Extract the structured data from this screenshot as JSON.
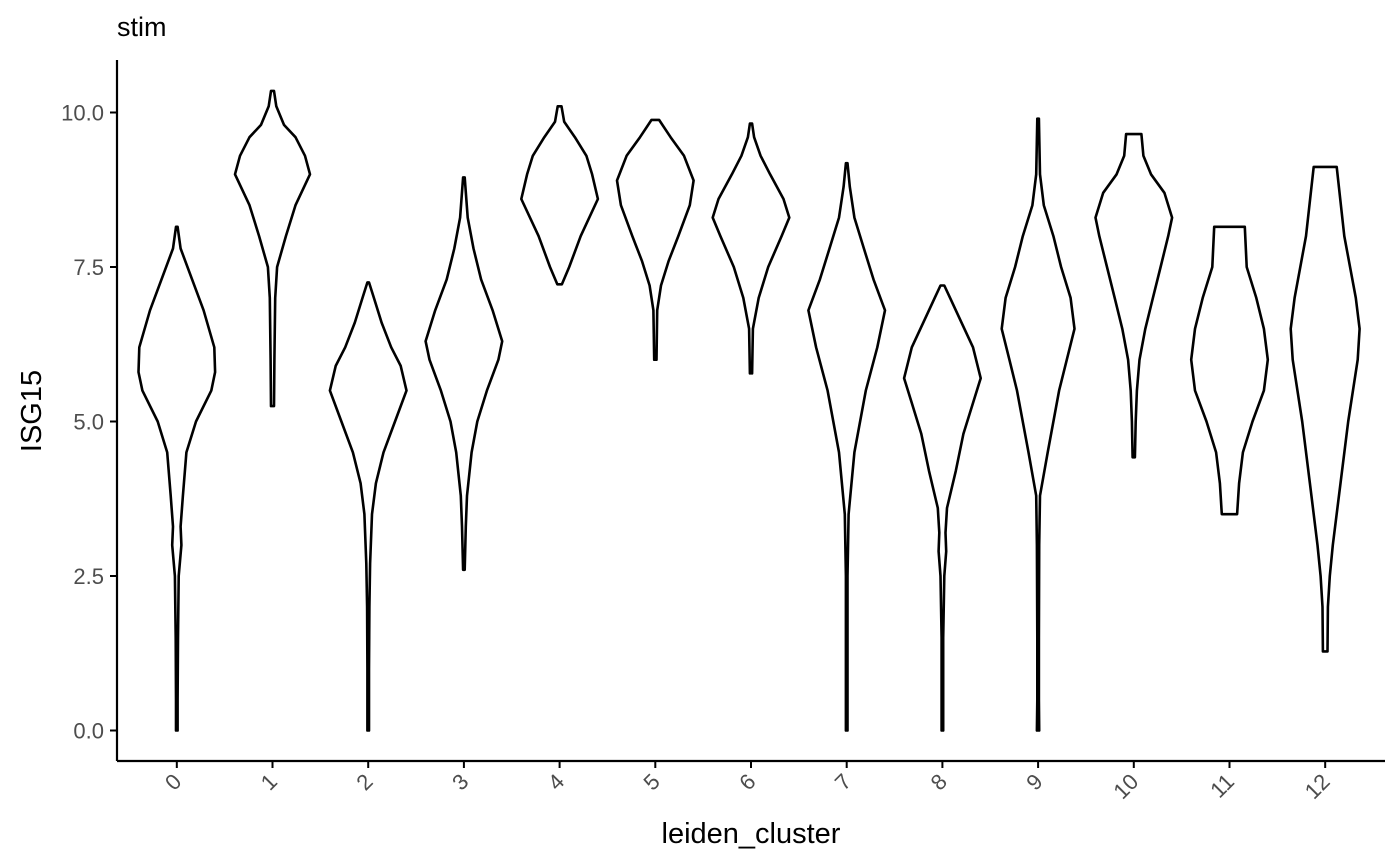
{
  "chart_data": {
    "type": "violin",
    "title": "stim",
    "xlabel": "leiden_cluster",
    "ylabel": "ISG15",
    "ylim": [
      -0.5,
      10.85
    ],
    "yticks": [
      "0.0",
      "2.5",
      "5.0",
      "7.5",
      "10.0"
    ],
    "ytick_values": [
      0,
      2.5,
      5,
      7.5,
      10
    ],
    "grid": false,
    "legend": "none",
    "series": [
      {
        "category": "0",
        "profile": [
          [
            0,
            0.02
          ],
          [
            0.5,
            0.02
          ],
          [
            1.5,
            0.03
          ],
          [
            2.5,
            0.05
          ],
          [
            3.0,
            0.12
          ],
          [
            3.3,
            0.1
          ],
          [
            3.8,
            0.16
          ],
          [
            4.5,
            0.25
          ],
          [
            5.0,
            0.5
          ],
          [
            5.5,
            0.9
          ],
          [
            5.8,
            1.0
          ],
          [
            6.2,
            0.98
          ],
          [
            6.8,
            0.7
          ],
          [
            7.3,
            0.4
          ],
          [
            7.8,
            0.1
          ],
          [
            8.15,
            0.02
          ]
        ]
      },
      {
        "category": "1",
        "profile": [
          [
            5.25,
            0.04
          ],
          [
            6.0,
            0.05
          ],
          [
            7.0,
            0.07
          ],
          [
            7.5,
            0.12
          ],
          [
            8.0,
            0.35
          ],
          [
            8.5,
            0.6
          ],
          [
            9.0,
            0.98
          ],
          [
            9.3,
            0.85
          ],
          [
            9.6,
            0.6
          ],
          [
            9.8,
            0.3
          ],
          [
            10.1,
            0.1
          ],
          [
            10.35,
            0.04
          ]
        ]
      },
      {
        "category": "2",
        "profile": [
          [
            0,
            0.02
          ],
          [
            1.0,
            0.02
          ],
          [
            2.0,
            0.03
          ],
          [
            2.7,
            0.05
          ],
          [
            3.5,
            0.1
          ],
          [
            4.0,
            0.2
          ],
          [
            4.5,
            0.4
          ],
          [
            5.0,
            0.7
          ],
          [
            5.5,
            1.0
          ],
          [
            5.9,
            0.85
          ],
          [
            6.2,
            0.6
          ],
          [
            6.6,
            0.35
          ],
          [
            7.0,
            0.15
          ],
          [
            7.25,
            0.02
          ]
        ]
      },
      {
        "category": "3",
        "profile": [
          [
            2.6,
            0.02
          ],
          [
            3.3,
            0.05
          ],
          [
            3.8,
            0.08
          ],
          [
            4.5,
            0.2
          ],
          [
            5.0,
            0.35
          ],
          [
            5.5,
            0.6
          ],
          [
            6.0,
            0.9
          ],
          [
            6.3,
            1.0
          ],
          [
            6.8,
            0.75
          ],
          [
            7.3,
            0.45
          ],
          [
            7.8,
            0.25
          ],
          [
            8.3,
            0.1
          ],
          [
            8.95,
            0.02
          ]
        ]
      },
      {
        "category": "4",
        "profile": [
          [
            7.22,
            0.06
          ],
          [
            7.5,
            0.25
          ],
          [
            8.0,
            0.55
          ],
          [
            8.6,
            1.0
          ],
          [
            9.0,
            0.85
          ],
          [
            9.3,
            0.7
          ],
          [
            9.6,
            0.4
          ],
          [
            9.85,
            0.12
          ],
          [
            10.1,
            0.05
          ]
        ]
      },
      {
        "category": "5",
        "profile": [
          [
            6.0,
            0.03
          ],
          [
            6.8,
            0.05
          ],
          [
            7.2,
            0.15
          ],
          [
            7.6,
            0.35
          ],
          [
            8.0,
            0.6
          ],
          [
            8.5,
            0.9
          ],
          [
            8.9,
            1.0
          ],
          [
            9.3,
            0.75
          ],
          [
            9.6,
            0.4
          ],
          [
            9.88,
            0.1
          ]
        ]
      },
      {
        "category": "6",
        "profile": [
          [
            5.78,
            0.03
          ],
          [
            6.5,
            0.05
          ],
          [
            7.0,
            0.2
          ],
          [
            7.5,
            0.45
          ],
          [
            8.0,
            0.8
          ],
          [
            8.3,
            1.0
          ],
          [
            8.6,
            0.85
          ],
          [
            9.0,
            0.5
          ],
          [
            9.3,
            0.25
          ],
          [
            9.6,
            0.08
          ],
          [
            9.82,
            0.03
          ]
        ]
      },
      {
        "category": "7",
        "profile": [
          [
            0,
            0.02
          ],
          [
            1.0,
            0.02
          ],
          [
            2.5,
            0.02
          ],
          [
            3.5,
            0.05
          ],
          [
            4.5,
            0.2
          ],
          [
            5.5,
            0.5
          ],
          [
            6.2,
            0.8
          ],
          [
            6.8,
            1.0
          ],
          [
            7.3,
            0.7
          ],
          [
            7.8,
            0.45
          ],
          [
            8.3,
            0.2
          ],
          [
            8.8,
            0.08
          ],
          [
            9.18,
            0.02
          ]
        ]
      },
      {
        "category": "8",
        "profile": [
          [
            0,
            0.02
          ],
          [
            1.5,
            0.02
          ],
          [
            2.5,
            0.05
          ],
          [
            2.9,
            0.1
          ],
          [
            3.2,
            0.08
          ],
          [
            3.6,
            0.12
          ],
          [
            4.2,
            0.35
          ],
          [
            4.8,
            0.55
          ],
          [
            5.3,
            0.8
          ],
          [
            5.7,
            1.0
          ],
          [
            6.2,
            0.8
          ],
          [
            6.6,
            0.5
          ],
          [
            7.0,
            0.2
          ],
          [
            7.2,
            0.05
          ]
        ]
      },
      {
        "category": "9",
        "profile": [
          [
            0,
            0.03
          ],
          [
            0.5,
            0.02
          ],
          [
            1.5,
            0.02
          ],
          [
            3.0,
            0.03
          ],
          [
            3.8,
            0.05
          ],
          [
            4.5,
            0.25
          ],
          [
            5.5,
            0.55
          ],
          [
            6.0,
            0.75
          ],
          [
            6.5,
            0.95
          ],
          [
            7.0,
            0.85
          ],
          [
            7.5,
            0.6
          ],
          [
            8.0,
            0.4
          ],
          [
            8.5,
            0.15
          ],
          [
            9.0,
            0.05
          ],
          [
            9.9,
            0.02
          ]
        ]
      },
      {
        "category": "10",
        "profile": [
          [
            4.42,
            0.03
          ],
          [
            5.0,
            0.05
          ],
          [
            5.5,
            0.08
          ],
          [
            6.0,
            0.15
          ],
          [
            6.5,
            0.3
          ],
          [
            7.0,
            0.5
          ],
          [
            7.5,
            0.7
          ],
          [
            8.0,
            0.9
          ],
          [
            8.3,
            1.0
          ],
          [
            8.7,
            0.8
          ],
          [
            9.0,
            0.45
          ],
          [
            9.3,
            0.25
          ],
          [
            9.65,
            0.2
          ]
        ]
      },
      {
        "category": "11",
        "profile": [
          [
            3.5,
            0.2
          ],
          [
            4.0,
            0.25
          ],
          [
            4.5,
            0.35
          ],
          [
            5.0,
            0.6
          ],
          [
            5.5,
            0.9
          ],
          [
            6.0,
            1.0
          ],
          [
            6.5,
            0.9
          ],
          [
            7.0,
            0.7
          ],
          [
            7.5,
            0.45
          ],
          [
            8.15,
            0.4
          ]
        ]
      },
      {
        "category": "12",
        "profile": [
          [
            1.28,
            0.06
          ],
          [
            2.0,
            0.07
          ],
          [
            2.5,
            0.12
          ],
          [
            3.0,
            0.2
          ],
          [
            4.0,
            0.4
          ],
          [
            5.0,
            0.6
          ],
          [
            6.0,
            0.85
          ],
          [
            6.5,
            0.9
          ],
          [
            7.0,
            0.8
          ],
          [
            8.0,
            0.5
          ],
          [
            9.12,
            0.3
          ]
        ]
      }
    ]
  }
}
